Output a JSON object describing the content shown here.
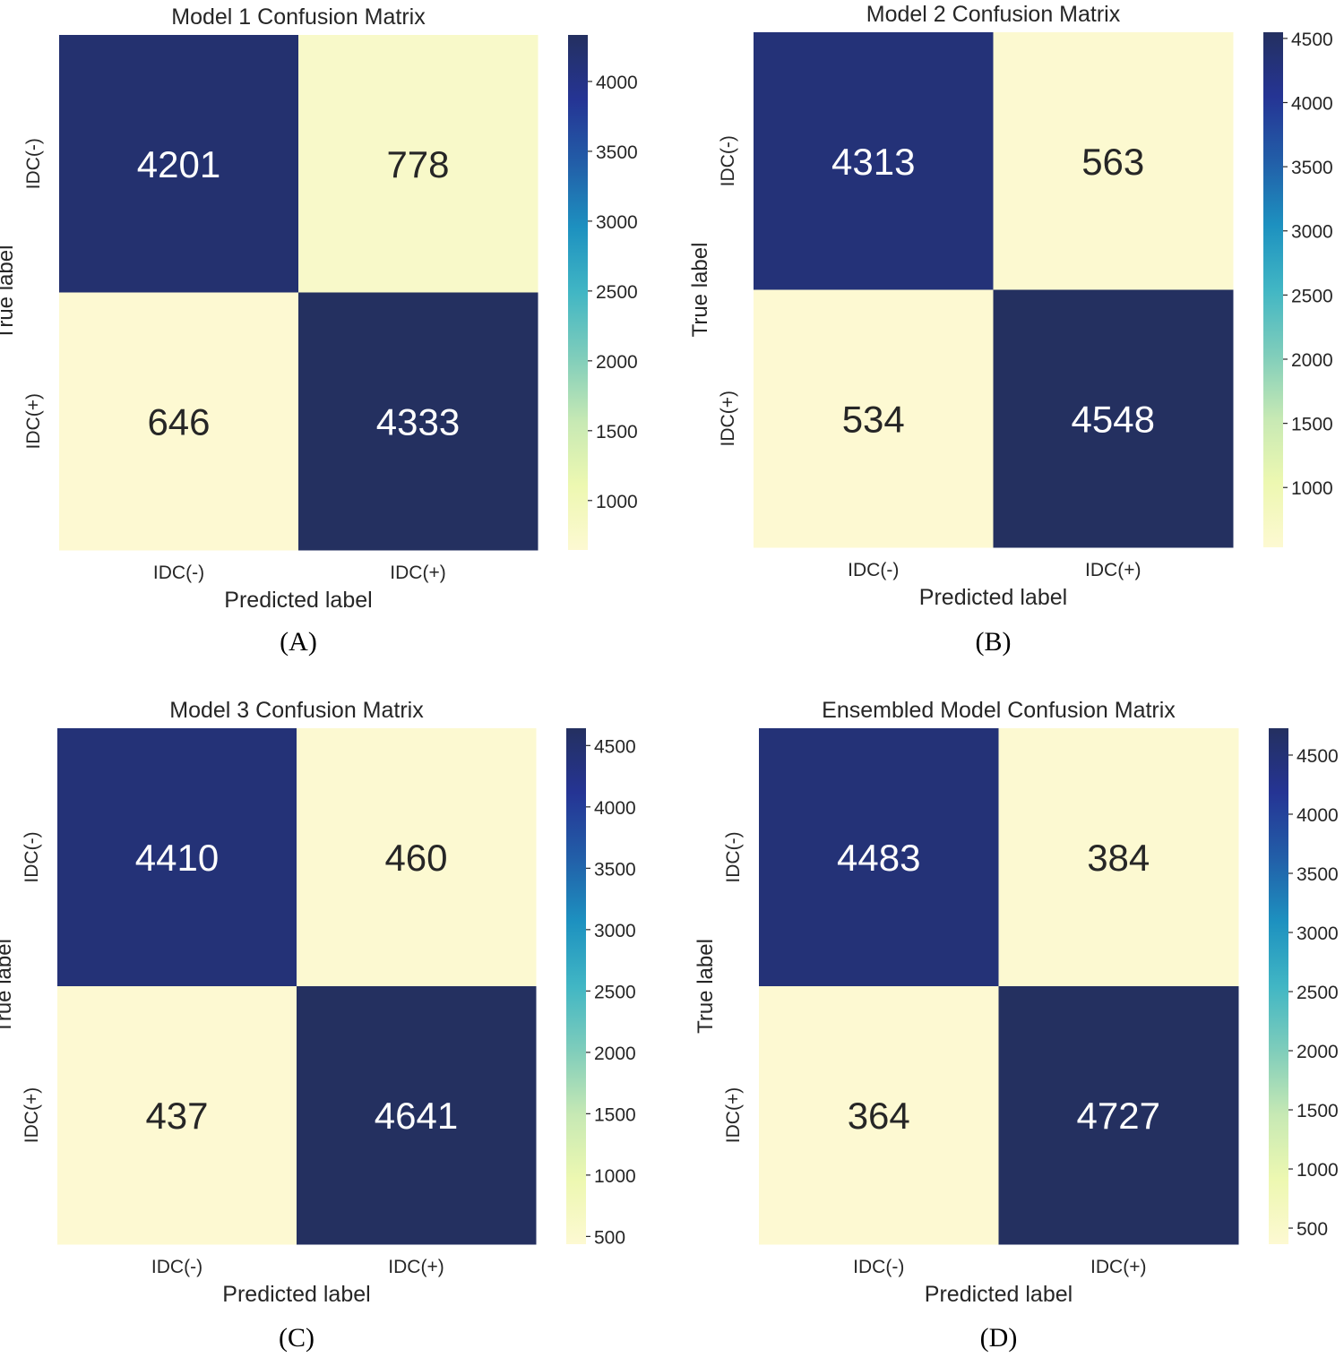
{
  "chart_data": [
    {
      "type": "heatmap",
      "title": "Model 1 Confusion Matrix",
      "caption": "(A)",
      "xlabel": "Predicted label",
      "ylabel": "True label",
      "x_categories": [
        "IDC(-)",
        "IDC(+)"
      ],
      "y_categories": [
        "IDC(-)",
        "IDC(+)"
      ],
      "values": [
        [
          4201,
          778
        ],
        [
          646,
          4333
        ]
      ],
      "colorbar": {
        "min": 646,
        "max": 4333,
        "ticks": [
          1000,
          1500,
          2000,
          2500,
          3000,
          3500,
          4000
        ],
        "colormap": "YlGnBu"
      }
    },
    {
      "type": "heatmap",
      "title": "Model 2 Confusion Matrix",
      "caption": "(B)",
      "xlabel": "Predicted label",
      "ylabel": "True label",
      "x_categories": [
        "IDC(-)",
        "IDC(+)"
      ],
      "y_categories": [
        "IDC(-)",
        "IDC(+)"
      ],
      "values": [
        [
          4313,
          563
        ],
        [
          534,
          4548
        ]
      ],
      "colorbar": {
        "min": 534,
        "max": 4548,
        "ticks": [
          1000,
          1500,
          2000,
          2500,
          3000,
          3500,
          4000,
          4500
        ],
        "colormap": "YlGnBu"
      }
    },
    {
      "type": "heatmap",
      "title": "Model 3 Confusion Matrix",
      "caption": "(C)",
      "xlabel": "Predicted label",
      "ylabel": "True label",
      "x_categories": [
        "IDC(-)",
        "IDC(+)"
      ],
      "y_categories": [
        "IDC(-)",
        "IDC(+)"
      ],
      "values": [
        [
          4410,
          460
        ],
        [
          437,
          4641
        ]
      ],
      "colorbar": {
        "min": 437,
        "max": 4641,
        "ticks": [
          500,
          1000,
          1500,
          2000,
          2500,
          3000,
          3500,
          4000,
          4500
        ],
        "colormap": "YlGnBu"
      }
    },
    {
      "type": "heatmap",
      "title": "Ensembled Model Confusion Matrix",
      "caption": "(D)",
      "xlabel": "Predicted label",
      "ylabel": "True label",
      "x_categories": [
        "IDC(-)",
        "IDC(+)"
      ],
      "y_categories": [
        "IDC(-)",
        "IDC(+)"
      ],
      "values": [
        [
          4483,
          384
        ],
        [
          364,
          4727
        ]
      ],
      "colorbar": {
        "min": 364,
        "max": 4727,
        "ticks": [
          500,
          1000,
          1500,
          2000,
          2500,
          3000,
          3500,
          4000,
          4500
        ],
        "colormap": "YlGnBu"
      }
    }
  ]
}
